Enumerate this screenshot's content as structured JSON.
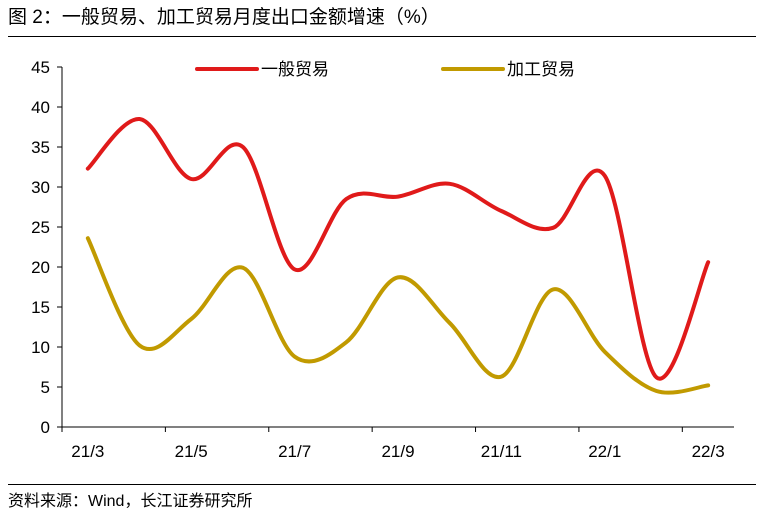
{
  "title": "图 2：一般贸易、加工贸易月度出口金额增速（%）",
  "source": "资料来源：Wind，长江证券研究所",
  "chart_data": {
    "type": "line",
    "x": [
      "21/3",
      "21/4",
      "21/5",
      "21/6",
      "21/7",
      "21/8",
      "21/9",
      "21/10",
      "21/11",
      "21/12",
      "22/1",
      "22/2",
      "22/3"
    ],
    "x_tick_labels": [
      "21/3",
      "21/5",
      "21/7",
      "21/9",
      "21/11",
      "22/1",
      "22/3"
    ],
    "ylim": [
      0,
      45
    ],
    "yticks": [
      0,
      5,
      10,
      15,
      20,
      25,
      30,
      35,
      40,
      45
    ],
    "grid": false,
    "legend_position": "top",
    "series": [
      {
        "name": "一般贸易",
        "color": "#e01a1a",
        "values": [
          32.3,
          38.5,
          31.0,
          35.0,
          19.7,
          28.5,
          28.8,
          30.4,
          27.0,
          24.9,
          31.4,
          6.2,
          20.6
        ]
      },
      {
        "name": "加工贸易",
        "color": "#c19a00",
        "values": [
          23.6,
          10.2,
          13.5,
          19.9,
          8.8,
          10.6,
          18.7,
          13.0,
          6.3,
          17.2,
          9.4,
          4.5,
          5.2
        ]
      }
    ]
  }
}
